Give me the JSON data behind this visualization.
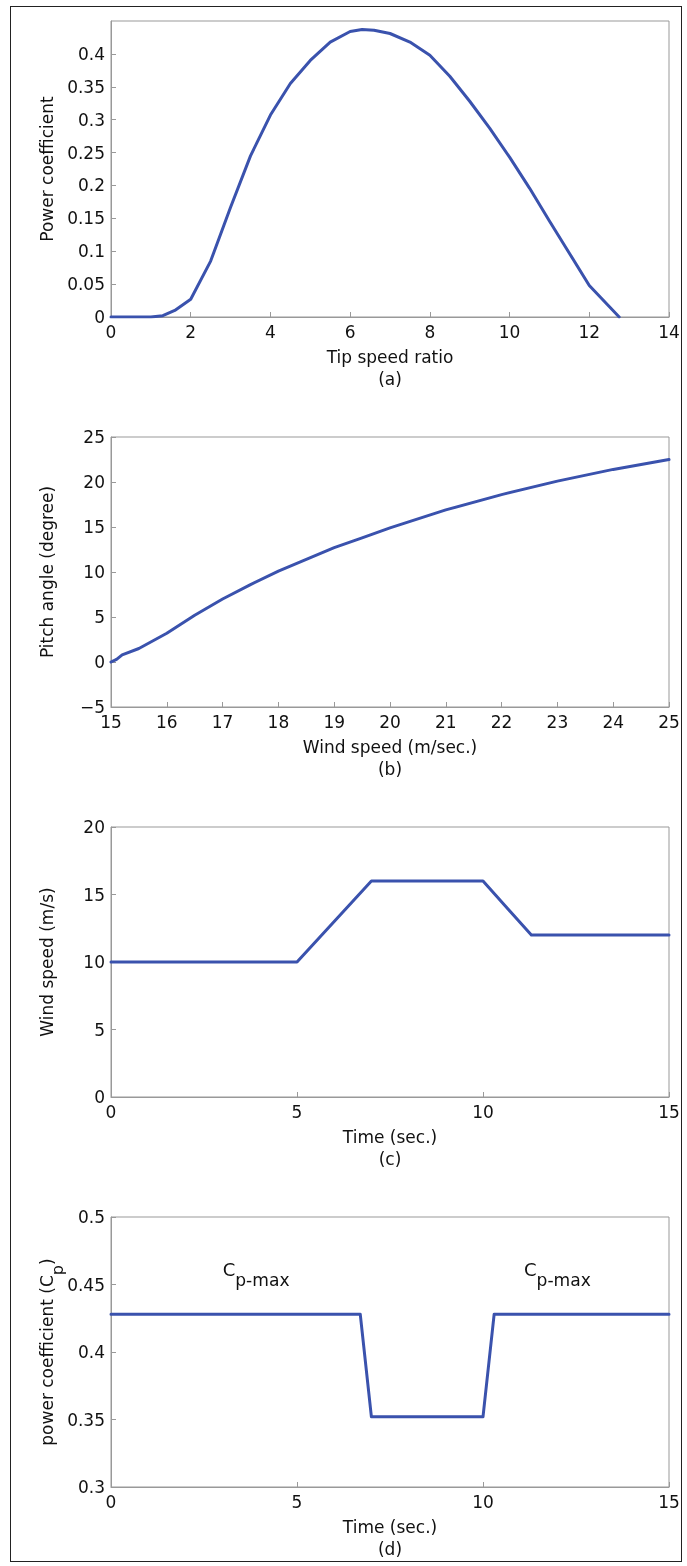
{
  "chart_data": [
    {
      "type": "line",
      "xlabel": "Tip speed ratio",
      "ylabel": "Power coefficient",
      "annotations": [
        "(a)"
      ],
      "grid": false,
      "marker": "none",
      "line_style": "solid",
      "xlim": [
        0,
        14
      ],
      "xticks": [
        0,
        2,
        4,
        6,
        8,
        10,
        12,
        14
      ],
      "ylim": [
        0,
        0.45
      ],
      "yticks": [
        0,
        0.05,
        0.1,
        0.15,
        0.2,
        0.25,
        0.3,
        0.35,
        0.4
      ],
      "series": [
        {
          "color": "#3a52ad",
          "x": [
            0,
            1,
            1.3,
            1.6,
            2,
            2.5,
            3,
            3.5,
            4,
            4.5,
            5,
            5.5,
            6,
            6.3,
            6.6,
            7,
            7.5,
            8,
            8.5,
            9,
            9.5,
            10,
            10.5,
            11,
            11.5,
            12,
            12.5,
            12.75
          ],
          "values": [
            0,
            0,
            0.002,
            0.01,
            0.027,
            0.085,
            0.167,
            0.245,
            0.307,
            0.355,
            0.39,
            0.418,
            0.434,
            0.437,
            0.436,
            0.431,
            0.418,
            0.398,
            0.366,
            0.328,
            0.287,
            0.243,
            0.196,
            0.146,
            0.097,
            0.048,
            0.016,
            0
          ]
        }
      ]
    },
    {
      "type": "line",
      "xlabel": "Wind speed (m/sec.)",
      "ylabel": "Pitch angle (degree)",
      "annotations": [
        "(b)"
      ],
      "grid": false,
      "marker": "none",
      "line_style": "solid",
      "xlim": [
        15,
        25
      ],
      "xticks": [
        15,
        16,
        17,
        18,
        19,
        20,
        21,
        22,
        23,
        24,
        25
      ],
      "ylim": [
        -5,
        25
      ],
      "yticks": [
        {
          "value": -5,
          "label": "−5"
        },
        0,
        5,
        10,
        15,
        20,
        25
      ],
      "series": [
        {
          "color": "#3a52ad",
          "x": [
            15,
            15.1,
            15.2,
            15.5,
            16,
            16.5,
            17,
            17.5,
            18,
            18.5,
            19,
            19.5,
            20,
            21,
            22,
            23,
            24,
            25
          ],
          "values": [
            0,
            0.3,
            0.8,
            1.5,
            3.2,
            5.2,
            7,
            8.6,
            10.1,
            11.4,
            12.7,
            13.8,
            14.9,
            16.9,
            18.6,
            20.1,
            21.4,
            22.5
          ]
        }
      ]
    },
    {
      "type": "line",
      "xlabel": "Time (sec.)",
      "ylabel": "Wind speed (m/s)",
      "annotations": [
        "(c)"
      ],
      "grid": false,
      "marker": "none",
      "line_style": "solid",
      "xlim": [
        0,
        15
      ],
      "xticks": [
        0,
        5,
        10,
        15
      ],
      "ylim": [
        0,
        20
      ],
      "yticks": [
        0,
        5,
        10,
        15,
        20
      ],
      "series": [
        {
          "color": "#3a52ad",
          "x": [
            0,
            5,
            7,
            10,
            11.3,
            15
          ],
          "values": [
            10,
            10,
            16,
            16,
            12,
            12
          ]
        }
      ]
    },
    {
      "type": "line",
      "xlabel": "Time (sec.)",
      "ylabel": "power coefficient (C$_{p}$)",
      "annotations": [
        "(d)",
        "C$_{p-max}$",
        "C$_{p-max}$"
      ],
      "grid": false,
      "marker": "none",
      "line_style": "solid",
      "xlim": [
        0,
        15
      ],
      "xticks": [
        0,
        5,
        10,
        15
      ],
      "ylim": [
        0.3,
        0.5
      ],
      "yticks": [
        0.3,
        0.35,
        0.4,
        0.45,
        0.5
      ],
      "series": [
        {
          "color": "#3a52ad",
          "x": [
            0,
            6.7,
            7,
            10,
            10.3,
            15
          ],
          "values": [
            0.428,
            0.428,
            0.352,
            0.352,
            0.428,
            0.428
          ]
        }
      ]
    }
  ]
}
